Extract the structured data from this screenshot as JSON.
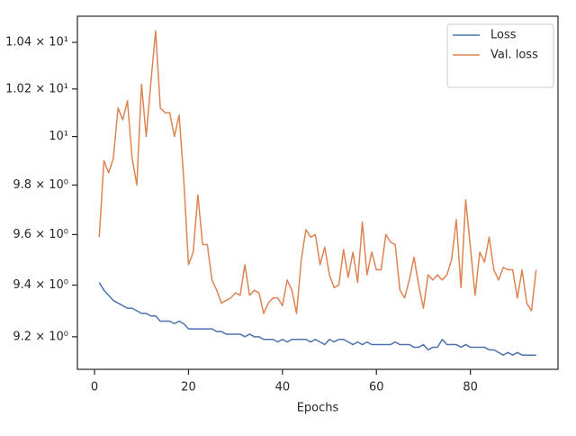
{
  "chart_data": {
    "type": "line",
    "xlabel": "Epochs",
    "x": [
      1,
      2,
      3,
      4,
      5,
      6,
      7,
      8,
      9,
      10,
      11,
      12,
      13,
      14,
      15,
      16,
      17,
      18,
      19,
      20,
      21,
      22,
      23,
      24,
      25,
      26,
      27,
      28,
      29,
      30,
      31,
      32,
      33,
      34,
      35,
      36,
      37,
      38,
      39,
      40,
      41,
      42,
      43,
      44,
      45,
      46,
      47,
      48,
      49,
      50,
      51,
      52,
      53,
      54,
      55,
      56,
      57,
      58,
      59,
      60,
      61,
      62,
      63,
      64,
      65,
      66,
      67,
      68,
      69,
      70,
      71,
      72,
      73,
      74,
      75,
      76,
      77,
      78,
      79,
      80,
      81,
      82,
      83,
      84,
      85,
      86,
      87,
      88,
      89,
      90,
      91,
      92,
      93,
      94
    ],
    "series": [
      {
        "name": "Loss",
        "color": "#4c72b0",
        "values": [
          9.41,
          9.38,
          9.36,
          9.34,
          9.33,
          9.32,
          9.31,
          9.31,
          9.3,
          9.29,
          9.29,
          9.28,
          9.28,
          9.26,
          9.26,
          9.26,
          9.25,
          9.26,
          9.25,
          9.23,
          9.23,
          9.23,
          9.23,
          9.23,
          9.23,
          9.22,
          9.22,
          9.21,
          9.21,
          9.21,
          9.21,
          9.2,
          9.21,
          9.2,
          9.2,
          9.19,
          9.19,
          9.19,
          9.18,
          9.19,
          9.18,
          9.19,
          9.19,
          9.19,
          9.19,
          9.18,
          9.19,
          9.18,
          9.17,
          9.19,
          9.18,
          9.19,
          9.19,
          9.18,
          9.17,
          9.18,
          9.17,
          9.18,
          9.17,
          9.17,
          9.17,
          9.17,
          9.17,
          9.18,
          9.17,
          9.17,
          9.17,
          9.16,
          9.16,
          9.17,
          9.15,
          9.16,
          9.16,
          9.19,
          9.17,
          9.17,
          9.17,
          9.16,
          9.17,
          9.16,
          9.16,
          9.16,
          9.16,
          9.15,
          9.15,
          9.14,
          9.13,
          9.14,
          9.13,
          9.14,
          9.13,
          9.13,
          9.13,
          9.13
        ]
      },
      {
        "name": "Val. loss",
        "color": "#dd8452",
        "values": [
          9.59,
          9.9,
          9.85,
          9.91,
          10.12,
          10.07,
          10.15,
          9.91,
          9.8,
          10.22,
          10.0,
          10.23,
          10.45,
          10.12,
          10.1,
          10.1,
          10.0,
          10.09,
          9.82,
          9.48,
          9.53,
          9.76,
          9.56,
          9.56,
          9.42,
          9.38,
          9.33,
          9.34,
          9.35,
          9.37,
          9.36,
          9.48,
          9.36,
          9.38,
          9.37,
          9.29,
          9.33,
          9.35,
          9.35,
          9.32,
          9.42,
          9.38,
          9.29,
          9.5,
          9.62,
          9.59,
          9.6,
          9.48,
          9.55,
          9.44,
          9.39,
          9.4,
          9.54,
          9.43,
          9.53,
          9.41,
          9.65,
          9.44,
          9.53,
          9.46,
          9.46,
          9.6,
          9.57,
          9.56,
          9.38,
          9.35,
          9.42,
          9.51,
          9.4,
          9.31,
          9.44,
          9.42,
          9.44,
          9.42,
          9.44,
          9.5,
          9.66,
          9.39,
          9.74,
          9.55,
          9.36,
          9.53,
          9.49,
          9.59,
          9.46,
          9.42,
          9.47,
          9.46,
          9.46,
          9.35,
          9.46,
          9.33,
          9.3,
          9.46
        ]
      }
    ],
    "xlim": [
      -3.65,
      98.65
    ],
    "xticks": [
      0,
      20,
      40,
      60,
      80
    ],
    "ylim": [
      9.076,
      10.514
    ],
    "yscale": "log",
    "yticks": [
      {
        "value": 9.2,
        "label": "9.2 × 10⁰"
      },
      {
        "value": 9.4,
        "label": "9.4 × 10⁰"
      },
      {
        "value": 9.6,
        "label": "9.6 × 10⁰"
      },
      {
        "value": 9.8,
        "label": "9.8 × 10⁰"
      },
      {
        "value": 10,
        "label": "10¹"
      },
      {
        "value": 10.2,
        "label": "1.02 × 10¹"
      },
      {
        "value": 10.4,
        "label": "1.04 × 10¹"
      }
    ],
    "legend": "upper right",
    "grid": false
  }
}
